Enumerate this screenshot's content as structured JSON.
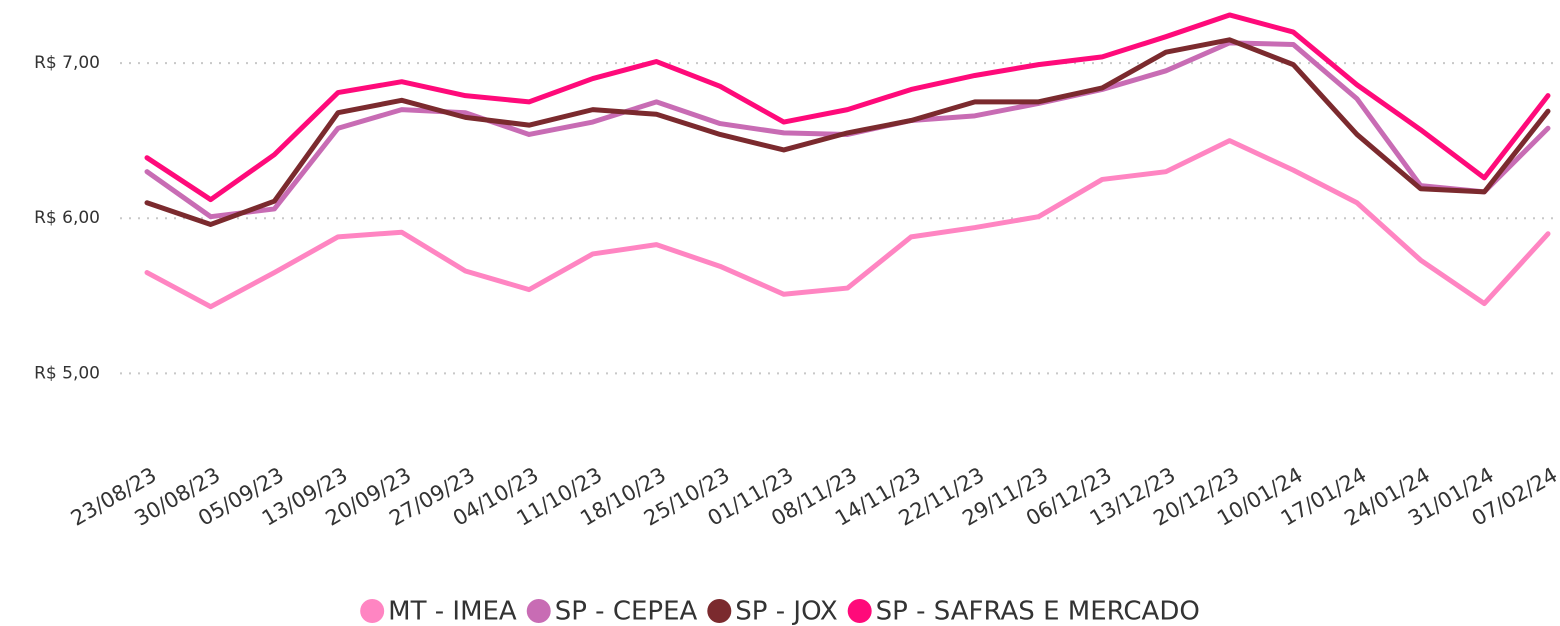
{
  "chart_data": {
    "type": "line",
    "categories": [
      "23/08/23",
      "30/08/23",
      "05/09/23",
      "13/09/23",
      "20/09/23",
      "27/09/23",
      "04/10/23",
      "11/10/23",
      "18/10/23",
      "25/10/23",
      "01/11/23",
      "08/11/23",
      "14/11/23",
      "22/11/23",
      "29/11/23",
      "06/12/23",
      "13/12/23",
      "20/12/23",
      "10/01/24",
      "17/01/24",
      "24/01/24",
      "31/01/24",
      "07/02/24"
    ],
    "series": [
      {
        "name": "MT - IMEA",
        "color": "#ff85c2",
        "values": [
          5.65,
          5.43,
          5.65,
          5.88,
          5.91,
          5.66,
          5.54,
          5.77,
          5.83,
          5.69,
          5.51,
          5.55,
          5.88,
          5.94,
          6.01,
          6.25,
          6.3,
          6.5,
          6.31,
          6.1,
          5.73,
          5.45,
          5.9
        ]
      },
      {
        "name": "SP - CEPEA",
        "color": "#c86cb4",
        "values": [
          6.3,
          6.01,
          6.06,
          6.58,
          6.7,
          6.68,
          6.54,
          6.62,
          6.75,
          6.61,
          6.55,
          6.54,
          6.63,
          6.66,
          6.74,
          6.83,
          6.95,
          7.13,
          7.12,
          6.77,
          6.21,
          6.17,
          6.58
        ]
      },
      {
        "name": "SP - JOX",
        "color": "#7b2a2e",
        "values": [
          6.1,
          5.96,
          6.11,
          6.68,
          6.76,
          6.65,
          6.6,
          6.7,
          6.67,
          6.54,
          6.44,
          6.55,
          6.63,
          6.75,
          6.75,
          6.84,
          7.07,
          7.15,
          6.99,
          6.54,
          6.19,
          6.17,
          6.69
        ]
      },
      {
        "name": "SP - SAFRAS E MERCADO",
        "color": "#ff0a7a",
        "values": [
          6.39,
          6.12,
          6.41,
          6.81,
          6.88,
          6.79,
          6.75,
          6.9,
          7.01,
          6.85,
          6.62,
          6.7,
          6.83,
          6.92,
          6.99,
          7.04,
          7.17,
          7.31,
          7.2,
          6.86,
          6.57,
          6.26,
          6.79
        ]
      }
    ],
    "ylim": [
      4.5,
      7.4
    ],
    "yticks": [
      {
        "value": 5,
        "label": "R$ 5,00"
      },
      {
        "value": 6,
        "label": "R$ 6,00"
      },
      {
        "value": 7,
        "label": "R$ 7,00"
      }
    ],
    "grid": true,
    "legend": "bottom"
  }
}
